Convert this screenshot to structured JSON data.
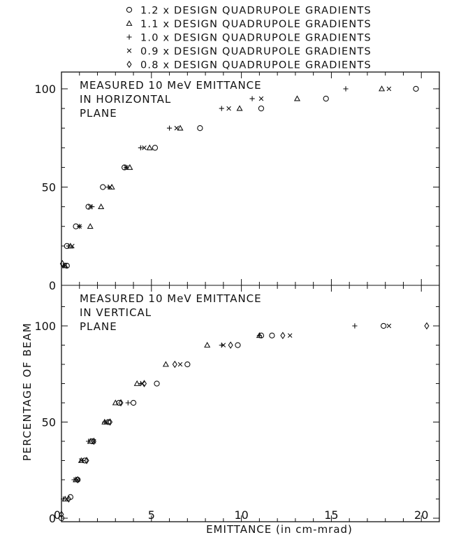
{
  "legend": {
    "placement": "top-center",
    "items": [
      {
        "symbol": "circle",
        "label": "1.2 x DESIGN QUADRUPOLE GRADIENTS"
      },
      {
        "symbol": "triangle",
        "label": "1.1 x DESIGN QUADRUPOLE GRADIENTS"
      },
      {
        "symbol": "plus",
        "label": "1.0 x DESIGN QUADRUPOLE GRADIENTS"
      },
      {
        "symbol": "cross",
        "label": "0.9 x DESIGN QUADRUPOLE GRADIENTS"
      },
      {
        "symbol": "diamond",
        "label": "0.8 x DESIGN QUADRUPOLE GRADIENTS"
      }
    ]
  },
  "ylabel": "PERCENTAGE OF BEAM",
  "xlabel": "EMITTANCE (in cm-mrad)",
  "chart_data": [
    {
      "type": "scatter",
      "title": "MEASURED 10 MeV EMITTANCE IN HORIZONTAL PLANE",
      "title_lines": [
        "MEASURED 10 MeV EMITTANCE",
        "IN HORIZONTAL",
        "PLANE"
      ],
      "xlim": [
        0,
        21
      ],
      "ylim": [
        0,
        120
      ],
      "x_ticks": [
        0,
        5,
        10,
        15,
        20
      ],
      "y_ticks": [
        0,
        50,
        100
      ],
      "series": [
        {
          "name": "1.2 x DESIGN QUADRUPOLE GRADIENTS",
          "symbol": "circle",
          "points": [
            [
              0.3,
              10
            ],
            [
              0.3,
              20
            ],
            [
              0.8,
              30
            ],
            [
              1.5,
              40
            ],
            [
              2.3,
              50
            ],
            [
              3.5,
              60
            ],
            [
              5.2,
              70
            ],
            [
              7.7,
              80
            ],
            [
              11.1,
              90
            ],
            [
              14.7,
              95
            ],
            [
              19.7,
              100
            ]
          ]
        },
        {
          "name": "1.1 x DESIGN QUADRUPOLE GRADIENTS",
          "symbol": "triangle",
          "points": [
            [
              0.2,
              10
            ],
            [
              0.5,
              20
            ],
            [
              1.6,
              30
            ],
            [
              2.2,
              40
            ],
            [
              2.8,
              50
            ],
            [
              3.8,
              60
            ],
            [
              4.9,
              70
            ],
            [
              6.6,
              80
            ],
            [
              9.9,
              90
            ],
            [
              13.1,
              95
            ],
            [
              17.8,
              100
            ]
          ]
        },
        {
          "name": "1.0 x DESIGN QUADRUPOLE GRADIENTS",
          "symbol": "plus",
          "points": [
            [
              0.1,
              10
            ],
            [
              0.4,
              20
            ],
            [
              1.0,
              30
            ],
            [
              1.7,
              40
            ],
            [
              2.6,
              50
            ],
            [
              3.6,
              60
            ],
            [
              4.4,
              70
            ],
            [
              6.0,
              80
            ],
            [
              8.9,
              90
            ],
            [
              10.6,
              95
            ],
            [
              15.8,
              100
            ]
          ]
        },
        {
          "name": "0.9 x DESIGN QUADRUPOLE GRADIENTS",
          "symbol": "cross",
          "points": [
            [
              0.2,
              10
            ],
            [
              0.6,
              20
            ],
            [
              1.0,
              30
            ],
            [
              1.6,
              40
            ],
            [
              2.7,
              50
            ],
            [
              3.6,
              60
            ],
            [
              4.6,
              70
            ],
            [
              6.4,
              80
            ],
            [
              9.3,
              90
            ],
            [
              11.1,
              95
            ],
            [
              18.2,
              100
            ]
          ]
        },
        {
          "name": "0.8 x DESIGN QUADRUPOLE GRADIENTS",
          "symbol": "diamond",
          "points": [
            [
              0.05,
              11
            ]
          ]
        }
      ]
    },
    {
      "type": "scatter",
      "title": "MEASURED 10 MeV EMITTANCE IN VERTICAL PLANE",
      "title_lines": [
        "MEASURED 10 MeV EMITTANCE",
        "IN VERTICAL",
        "PLANE"
      ],
      "xlim": [
        0,
        21
      ],
      "ylim": [
        0,
        120
      ],
      "x_ticks": [
        0,
        5,
        10,
        15,
        20
      ],
      "y_ticks": [
        0,
        50,
        100
      ],
      "series": [
        {
          "name": "1.2 x DESIGN QUADRUPOLE GRADIENTS",
          "symbol": "circle",
          "points": [
            [
              0.0,
              0
            ],
            [
              0.5,
              11
            ],
            [
              0.9,
              20
            ],
            [
              1.3,
              30
            ],
            [
              1.7,
              40
            ],
            [
              2.6,
              50
            ],
            [
              3.2,
              60
            ],
            [
              4.0,
              60
            ],
            [
              5.3,
              70
            ],
            [
              7.0,
              80
            ],
            [
              9.8,
              90
            ],
            [
              11.1,
              95
            ],
            [
              11.7,
              95
            ],
            [
              17.9,
              100
            ]
          ]
        },
        {
          "name": "1.1 x DESIGN QUADRUPOLE GRADIENTS",
          "symbol": "triangle",
          "points": [
            [
              0.2,
              10
            ],
            [
              0.8,
              20
            ],
            [
              1.1,
              30
            ],
            [
              1.6,
              40
            ],
            [
              2.4,
              50
            ],
            [
              3.0,
              60
            ],
            [
              4.2,
              70
            ],
            [
              5.8,
              80
            ],
            [
              8.1,
              90
            ],
            [
              11.0,
              95
            ]
          ]
        },
        {
          "name": "1.0 x DESIGN QUADRUPOLE GRADIENTS",
          "symbol": "plus",
          "points": [
            [
              0.1,
              10
            ],
            [
              0.7,
              20
            ],
            [
              1.2,
              30
            ],
            [
              1.5,
              40
            ],
            [
              2.4,
              50
            ],
            [
              3.7,
              60
            ],
            [
              4.4,
              70
            ],
            [
              8.9,
              90
            ],
            [
              11.0,
              95
            ],
            [
              16.3,
              100
            ]
          ]
        },
        {
          "name": "0.9 x DESIGN QUADRUPOLE GRADIENTS",
          "symbol": "cross",
          "points": [
            [
              0.3,
              10
            ],
            [
              0.9,
              20
            ],
            [
              1.1,
              30
            ],
            [
              1.8,
              40
            ],
            [
              2.5,
              50
            ],
            [
              4.5,
              70
            ],
            [
              6.6,
              80
            ],
            [
              9.0,
              90
            ],
            [
              12.7,
              95
            ],
            [
              18.2,
              100
            ]
          ]
        },
        {
          "name": "0.8 x DESIGN QUADRUPOLE GRADIENTS",
          "symbol": "diamond",
          "points": [
            [
              0.0,
              2
            ],
            [
              0.4,
              10
            ],
            [
              0.9,
              20
            ],
            [
              1.4,
              30
            ],
            [
              1.8,
              40
            ],
            [
              2.7,
              50
            ],
            [
              3.3,
              60
            ],
            [
              4.6,
              70
            ],
            [
              6.3,
              80
            ],
            [
              9.4,
              90
            ],
            [
              12.3,
              95
            ],
            [
              20.3,
              100
            ]
          ]
        }
      ]
    }
  ]
}
